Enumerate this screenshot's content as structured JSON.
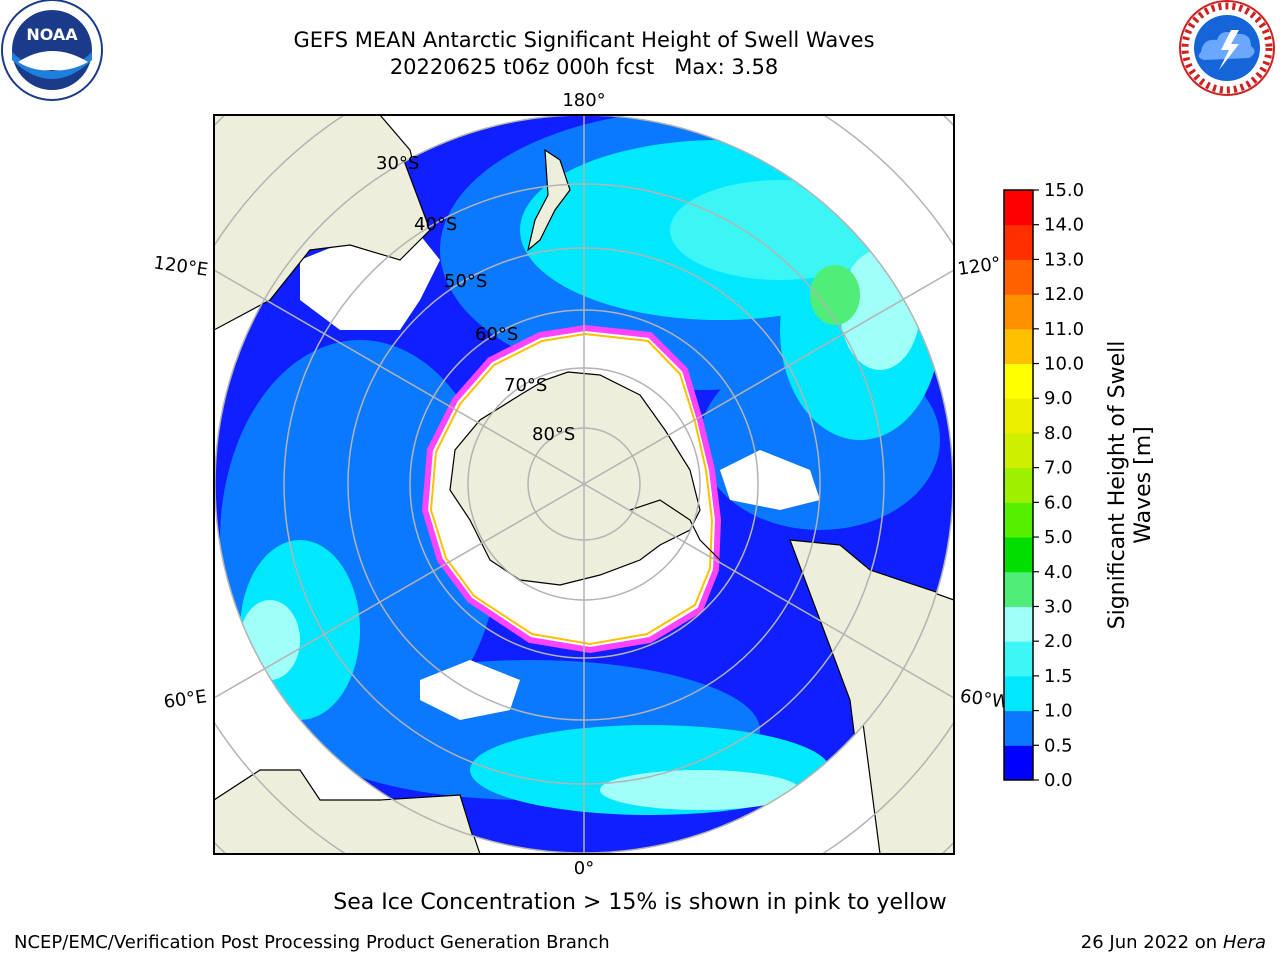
{
  "title": {
    "line1": "GEFS MEAN Antarctic Significant Height of Swell Waves",
    "line2_date": "20220625 t06z 000h fcst",
    "line2_max": "Max: 3.58"
  },
  "map": {
    "lon_labels": {
      "top": "180°",
      "bottom": "0°",
      "left_top": "120°E",
      "left_bottom": "60°E",
      "right_top": "120°",
      "right_bottom": "60°W"
    },
    "lat_labels": [
      "30°S",
      "40°S",
      "50°S",
      "60°S",
      "70°S",
      "80°S"
    ]
  },
  "note": "Sea Ice Concentration > 15% is shown in pink to yellow",
  "footer": {
    "left": "NCEP/EMC/Verification Post Processing Product Generation Branch",
    "date": "26 Jun 2022 on",
    "machine": "Hera"
  },
  "logos": {
    "left": "noaa-logo",
    "right": "nws-logo",
    "noaa_text": "NOAA"
  },
  "chart_data": {
    "type": "heatmap",
    "projection": "south-polar-stereographic",
    "colorbar": {
      "label": "Significant Height of Swell Waves [m]",
      "ticks": [
        "0.0",
        "0.5",
        "1.0",
        "1.5",
        "2.0",
        "3.0",
        "4.0",
        "5.0",
        "6.0",
        "7.0",
        "8.0",
        "9.0",
        "10.0",
        "11.0",
        "12.0",
        "13.0",
        "14.0",
        "15.0"
      ],
      "colors": [
        "#0000ff",
        "#0a78ff",
        "#00e8ff",
        "#3cf5f5",
        "#a0fff8",
        "#50ee78",
        "#00de00",
        "#54f000",
        "#9ef000",
        "#cdf000",
        "#ecf000",
        "#ffff00",
        "#ffc000",
        "#ff9000",
        "#ff6000",
        "#ff3000",
        "#ff0000"
      ]
    },
    "max_value": 3.58,
    "colors": {
      "ocean_base": "#0f1fff",
      "land": "#eeeedd",
      "ice_edge": "#ff44ff"
    }
  }
}
